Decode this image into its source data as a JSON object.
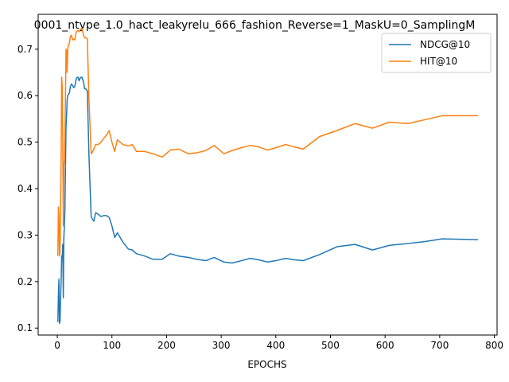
{
  "chart_data": {
    "type": "line",
    "title": "0001_ntype_1.0_hact_leakyrelu_666_fashion_Reverse=1_MaskU=0_SamplingM",
    "xlabel": "EPOCHS",
    "ylabel": "",
    "xlim": [
      -35,
      805
    ],
    "ylim": [
      0.085,
      0.775
    ],
    "xticks": [
      0,
      100,
      200,
      300,
      400,
      500,
      600,
      700,
      800
    ],
    "yticks": [
      0.1,
      0.2,
      0.3,
      0.4,
      0.5,
      0.6,
      0.7
    ],
    "xtick_labels": [
      "0",
      "100",
      "200",
      "300",
      "400",
      "500",
      "600",
      "700",
      "800"
    ],
    "ytick_labels": [
      "0.1",
      "0.2",
      "0.3",
      "0.4",
      "0.5",
      "0.6",
      "0.7"
    ],
    "grid": false,
    "legend": "top-right",
    "colors": {
      "NDCG@10": "#1f77b4",
      "HIT@10": "#ff7f0e"
    },
    "series": [
      {
        "name": "NDCG@10",
        "x": [
          1,
          2,
          3,
          4,
          5,
          6,
          7,
          8,
          9,
          10,
          11,
          12,
          13,
          14,
          15,
          16,
          17,
          18,
          19,
          20,
          22,
          24,
          26,
          28,
          30,
          32,
          35,
          38,
          40,
          42,
          45,
          48,
          50,
          52,
          55,
          58,
          62,
          64,
          67,
          70,
          75,
          80,
          85,
          90,
          95,
          100,
          105,
          110,
          120,
          130,
          137,
          145,
          160,
          175,
          192,
          207,
          222,
          240,
          255,
          272,
          287,
          305,
          320,
          337,
          353,
          368,
          385,
          400,
          418,
          433,
          450,
          480,
          512,
          545,
          577,
          608,
          642,
          672,
          705,
          737,
          770
        ],
        "y": [
          0.113,
          0.17,
          0.205,
          0.11,
          0.115,
          0.16,
          0.2,
          0.255,
          0.25,
          0.28,
          0.165,
          0.295,
          0.32,
          0.355,
          0.45,
          0.535,
          0.56,
          0.59,
          0.6,
          0.602,
          0.605,
          0.62,
          0.625,
          0.622,
          0.617,
          0.62,
          0.638,
          0.64,
          0.632,
          0.638,
          0.64,
          0.63,
          0.615,
          0.615,
          0.61,
          0.47,
          0.34,
          0.335,
          0.33,
          0.348,
          0.345,
          0.34,
          0.342,
          0.342,
          0.338,
          0.32,
          0.295,
          0.305,
          0.285,
          0.27,
          0.268,
          0.26,
          0.255,
          0.248,
          0.248,
          0.26,
          0.255,
          0.252,
          0.248,
          0.245,
          0.252,
          0.242,
          0.24,
          0.245,
          0.25,
          0.247,
          0.242,
          0.245,
          0.25,
          0.247,
          0.245,
          0.258,
          0.275,
          0.28,
          0.268,
          0.278,
          0.282,
          0.286,
          0.292,
          0.291,
          0.29
        ]
      },
      {
        "name": "HIT@10",
        "x": [
          1,
          2,
          3,
          4,
          5,
          6,
          7,
          8,
          9,
          10,
          11,
          12,
          13,
          14,
          15,
          16,
          17,
          18,
          19,
          20,
          22,
          24,
          26,
          28,
          30,
          32,
          35,
          38,
          40,
          42,
          45,
          48,
          50,
          52,
          55,
          58,
          62,
          64,
          67,
          70,
          75,
          80,
          85,
          90,
          95,
          100,
          105,
          110,
          120,
          130,
          137,
          145,
          160,
          175,
          192,
          207,
          222,
          240,
          255,
          272,
          287,
          305,
          320,
          337,
          353,
          368,
          385,
          400,
          418,
          433,
          450,
          480,
          512,
          545,
          577,
          608,
          642,
          672,
          705,
          737,
          770
        ],
        "y": [
          0.255,
          0.36,
          0.34,
          0.255,
          0.265,
          0.36,
          0.46,
          0.64,
          0.62,
          0.5,
          0.32,
          0.45,
          0.46,
          0.52,
          0.6,
          0.7,
          0.695,
          0.65,
          0.695,
          0.708,
          0.712,
          0.728,
          0.73,
          0.72,
          0.722,
          0.72,
          0.738,
          0.74,
          0.738,
          0.742,
          0.745,
          0.73,
          0.725,
          0.725,
          0.722,
          0.59,
          0.475,
          0.478,
          0.485,
          0.495,
          0.495,
          0.5,
          0.508,
          0.515,
          0.525,
          0.5,
          0.48,
          0.505,
          0.495,
          0.492,
          0.495,
          0.48,
          0.48,
          0.475,
          0.468,
          0.483,
          0.485,
          0.475,
          0.477,
          0.482,
          0.493,
          0.475,
          0.482,
          0.488,
          0.493,
          0.49,
          0.483,
          0.488,
          0.495,
          0.49,
          0.485,
          0.512,
          0.525,
          0.54,
          0.53,
          0.543,
          0.54,
          0.548,
          0.557,
          0.557,
          0.557
        ]
      }
    ]
  }
}
